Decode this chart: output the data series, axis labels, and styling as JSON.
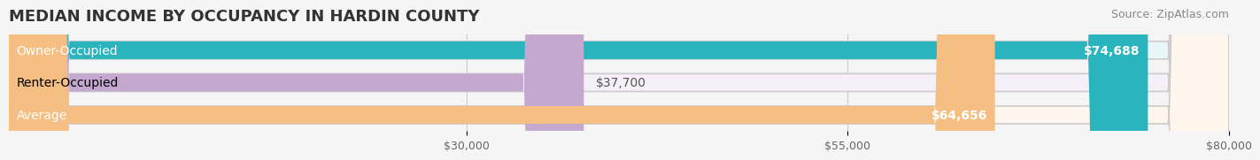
{
  "title": "MEDIAN INCOME BY OCCUPANCY IN HARDIN COUNTY",
  "source": "Source: ZipAtlas.com",
  "categories": [
    "Owner-Occupied",
    "Renter-Occupied",
    "Average"
  ],
  "values": [
    74688,
    37700,
    64656
  ],
  "labels": [
    "$74,688",
    "$37,700",
    "$64,656"
  ],
  "bar_colors": [
    "#2ab5be",
    "#c4a8d0",
    "#f5be82"
  ],
  "bar_bg_colors": [
    "#e8f6f8",
    "#f5f0f8",
    "#fef6ec"
  ],
  "xlim": [
    0,
    80000
  ],
  "xticks": [
    30000,
    55000,
    80000
  ],
  "xticklabels": [
    "$30,000",
    "$55,000",
    "$80,000"
  ],
  "title_fontsize": 13,
  "source_fontsize": 9,
  "label_fontsize": 10,
  "bar_height": 0.55,
  "background_color": "#f5f5f5",
  "label_inside_threshold": 60000
}
